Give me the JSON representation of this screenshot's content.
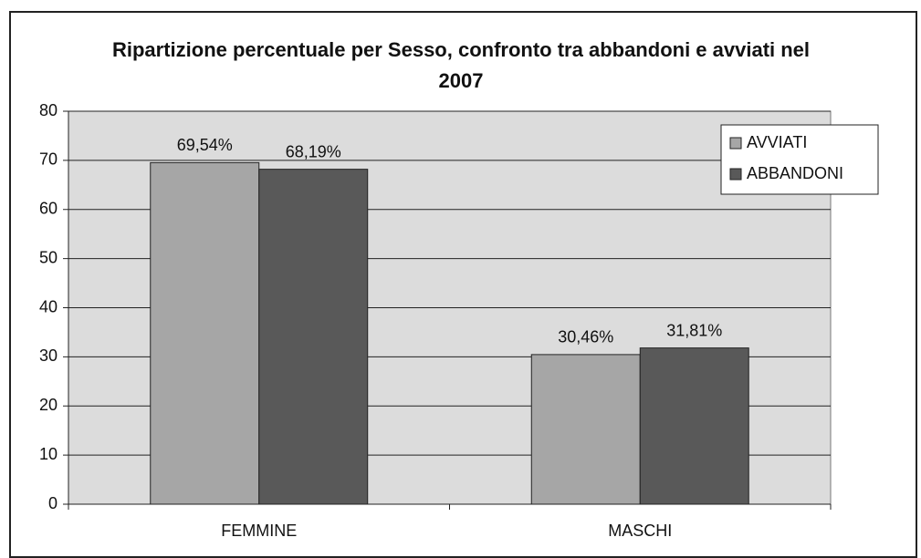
{
  "chart_data": {
    "type": "bar",
    "title": "Ripartizione percentuale per Sesso, confronto tra abbandoni e avviati nel 2007",
    "categories": [
      "FEMMINE",
      "MASCHI"
    ],
    "series": [
      {
        "name": "AVVIATI",
        "color": "#a6a6a6",
        "values": [
          69.54,
          30.46
        ],
        "value_labels": [
          "69,54%",
          "30,46%"
        ]
      },
      {
        "name": "ABBANDONI",
        "color": "#595959",
        "values": [
          68.19,
          31.81
        ],
        "value_labels": [
          "68,19%",
          "31,81%"
        ]
      }
    ],
    "ylim": [
      0,
      80
    ],
    "yticks": [
      0,
      10,
      20,
      30,
      40,
      50,
      60,
      70,
      80
    ],
    "grid": true,
    "legend": "top-right"
  }
}
